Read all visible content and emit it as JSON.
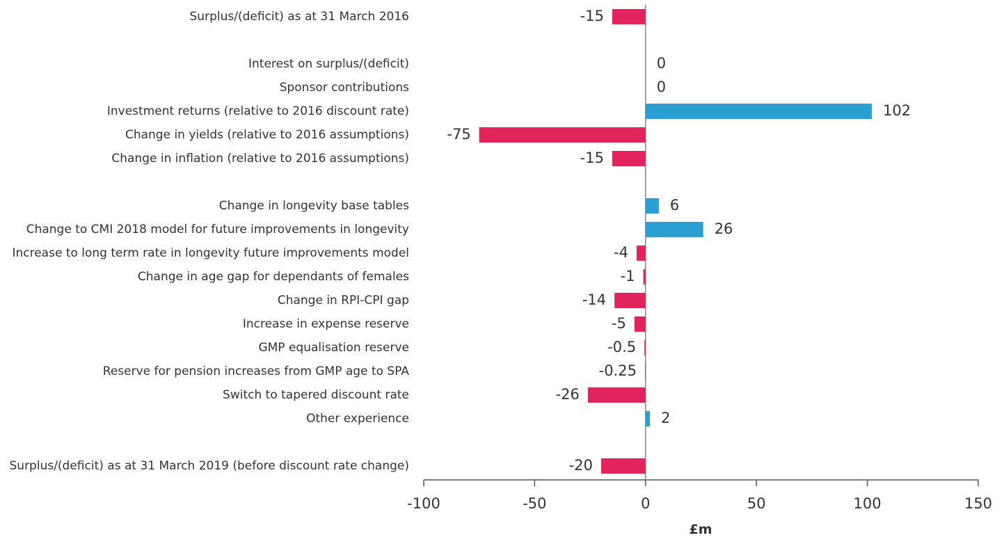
{
  "chart_data": {
    "type": "hbar",
    "categories": [
      "Surplus/(deficit) as at 31 March 2016",
      null,
      "Interest on surplus/(deficit)",
      "Sponsor contributions",
      "Investment returns (relative to 2016 discount rate)",
      "Change in yields (relative to 2016 assumptions)",
      "Change in inflation (relative to 2016 assumptions)",
      null,
      "Change in longevity base tables",
      "Change to CMI 2018 model for future improvements in longevity",
      "Increase to long term rate in longevity future improvements model",
      "Change in age gap for dependants of females",
      "Change in RPI-CPI gap",
      "Increase in expense reserve",
      "GMP equalisation reserve",
      "Reserve for pension increases from GMP age to SPA",
      "Switch to tapered discount rate",
      "Other experience",
      null,
      "Surplus/(deficit) as at 31 March 2019 (before discount rate change)"
    ],
    "values": [
      -15,
      null,
      0,
      0,
      102,
      -75,
      -15,
      null,
      6,
      26,
      -4,
      -1,
      -14,
      -5,
      -0.5,
      -0.25,
      -26,
      2,
      null,
      -20
    ],
    "positive_color": "#2b9fd2",
    "negative_color": "#e2245c",
    "xlim": [
      -100,
      150
    ],
    "xticks": [
      -100,
      -50,
      0,
      50,
      100,
      150
    ],
    "x_label": "£m"
  }
}
